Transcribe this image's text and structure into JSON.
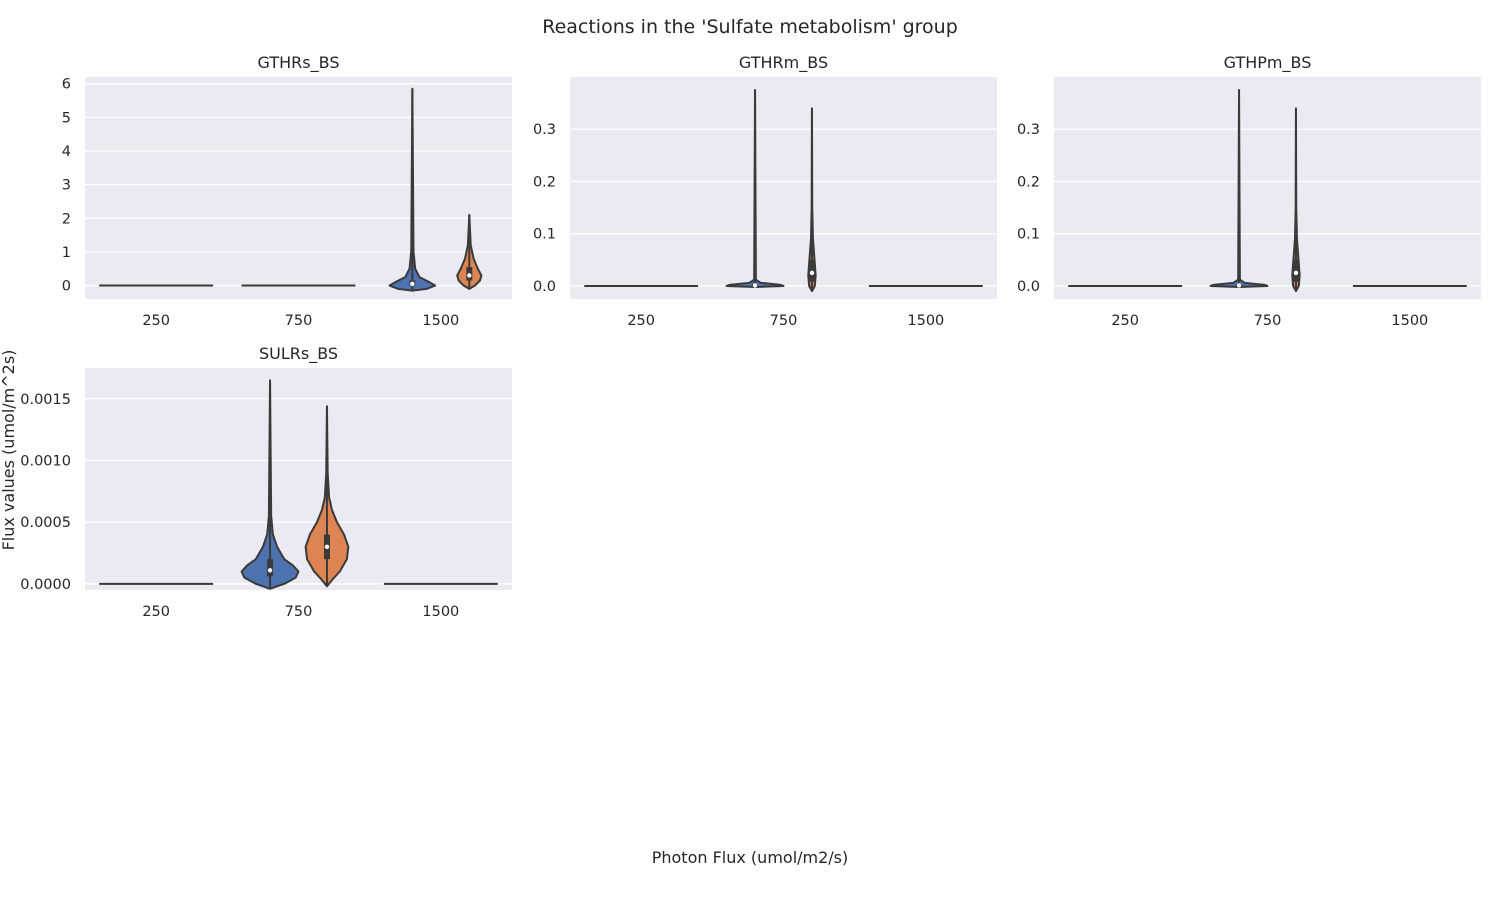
{
  "chart_data": {
    "type": "violin",
    "title": "Reactions in the 'Sulfate metabolism' group",
    "xlabel": "Photon Flux (umol/m2/s)",
    "ylabel": "Flux values (umol/m^2s)",
    "hue_colors": [
      "#4c72b0",
      "#dd8452"
    ],
    "panels": [
      {
        "title": "GTHRs_BS",
        "categories": [
          "250",
          "750",
          "1500"
        ],
        "ylim": [
          -0.4,
          6.2
        ],
        "yticks": [
          0,
          1,
          2,
          3,
          4,
          5,
          6
        ],
        "ytick_labels": [
          "0",
          "1",
          "2",
          "3",
          "4",
          "5",
          "6"
        ],
        "violins": [
          {
            "category": "250",
            "flat": true,
            "value": 0
          },
          {
            "category": "750",
            "flat": true,
            "value": 0
          },
          {
            "category": "1500",
            "hue": 0,
            "offset": -0.2,
            "min": -0.15,
            "max": 5.85,
            "q1": 0.0,
            "median": 0.05,
            "q3": 0.15,
            "shape": [
              [
                -0.15,
                0.0
              ],
              [
                -0.1,
                0.1
              ],
              [
                0.0,
                0.16
              ],
              [
                0.1,
                0.12
              ],
              [
                0.25,
                0.05
              ],
              [
                0.5,
                0.02
              ],
              [
                1.0,
                0.008
              ],
              [
                5.85,
                0.0
              ]
            ]
          },
          {
            "category": "1500",
            "hue": 1,
            "offset": 0.2,
            "min": -0.1,
            "max": 2.1,
            "q1": 0.15,
            "median": 0.3,
            "q3": 0.55,
            "shape": [
              [
                -0.1,
                0.0
              ],
              [
                0.0,
                0.04
              ],
              [
                0.15,
                0.075
              ],
              [
                0.3,
                0.085
              ],
              [
                0.5,
                0.06
              ],
              [
                0.8,
                0.03
              ],
              [
                1.2,
                0.01
              ],
              [
                2.1,
                0.0
              ]
            ]
          }
        ]
      },
      {
        "title": "GTHRm_BS",
        "categories": [
          "250",
          "750",
          "1500"
        ],
        "ylim": [
          -0.025,
          0.4
        ],
        "yticks": [
          0.0,
          0.1,
          0.2,
          0.3
        ],
        "ytick_labels": [
          "0.0",
          "0.1",
          "0.2",
          "0.3"
        ],
        "violins": [
          {
            "category": "250",
            "flat": true,
            "value": 0
          },
          {
            "category": "750",
            "hue": 0,
            "offset": -0.2,
            "min": -0.002,
            "max": 0.375,
            "q1": 0.0,
            "median": 0.001,
            "q3": 0.003,
            "shape": [
              [
                -0.002,
                0.0
              ],
              [
                0.0,
                0.2
              ],
              [
                0.002,
                0.18
              ],
              [
                0.006,
                0.04
              ],
              [
                0.012,
                0.006
              ],
              [
                0.375,
                0.0
              ]
            ]
          },
          {
            "category": "750",
            "hue": 1,
            "offset": 0.2,
            "min": -0.01,
            "max": 0.34,
            "q1": 0.008,
            "median": 0.025,
            "q3": 0.05,
            "shape": [
              [
                -0.01,
                0.0
              ],
              [
                0.0,
                0.02
              ],
              [
                0.02,
                0.026
              ],
              [
                0.05,
                0.018
              ],
              [
                0.09,
                0.007
              ],
              [
                0.15,
                0.002
              ],
              [
                0.34,
                0.0
              ]
            ]
          },
          {
            "category": "1500",
            "flat": true,
            "value": 0
          }
        ]
      },
      {
        "title": "GTHPm_BS",
        "categories": [
          "250",
          "750",
          "1500"
        ],
        "ylim": [
          -0.025,
          0.4
        ],
        "yticks": [
          0.0,
          0.1,
          0.2,
          0.3
        ],
        "ytick_labels": [
          "0.0",
          "0.1",
          "0.2",
          "0.3"
        ],
        "violins": [
          {
            "category": "250",
            "flat": true,
            "value": 0
          },
          {
            "category": "750",
            "hue": 0,
            "offset": -0.2,
            "min": -0.002,
            "max": 0.375,
            "q1": 0.0,
            "median": 0.001,
            "q3": 0.003,
            "shape": [
              [
                -0.002,
                0.0
              ],
              [
                0.0,
                0.2
              ],
              [
                0.002,
                0.18
              ],
              [
                0.006,
                0.04
              ],
              [
                0.012,
                0.006
              ],
              [
                0.375,
                0.0
              ]
            ]
          },
          {
            "category": "750",
            "hue": 1,
            "offset": 0.2,
            "min": -0.01,
            "max": 0.34,
            "q1": 0.008,
            "median": 0.025,
            "q3": 0.05,
            "shape": [
              [
                -0.01,
                0.0
              ],
              [
                0.0,
                0.02
              ],
              [
                0.02,
                0.026
              ],
              [
                0.05,
                0.018
              ],
              [
                0.09,
                0.007
              ],
              [
                0.15,
                0.002
              ],
              [
                0.34,
                0.0
              ]
            ]
          },
          {
            "category": "1500",
            "flat": true,
            "value": 0
          }
        ]
      },
      {
        "title": "SULRs_BS",
        "categories": [
          "250",
          "750",
          "1500"
        ],
        "ylim": [
          -5e-05,
          0.00175
        ],
        "yticks": [
          0.0,
          0.0005,
          0.001,
          0.0015
        ],
        "ytick_labels": [
          "0.0000",
          "0.0005",
          "0.0010",
          "0.0015"
        ],
        "violins": [
          {
            "category": "250",
            "flat": true,
            "value": 0
          },
          {
            "category": "750",
            "hue": 0,
            "offset": -0.2,
            "min": -4e-05,
            "max": 0.00165,
            "q1": 6e-05,
            "median": 0.00011,
            "q3": 0.0002,
            "shape": [
              [
                -4e-05,
                0.0
              ],
              [
                0.0,
                0.1
              ],
              [
                5e-05,
                0.18
              ],
              [
                0.0001,
                0.2
              ],
              [
                0.00015,
                0.16
              ],
              [
                0.0002,
                0.1
              ],
              [
                0.0003,
                0.05
              ],
              [
                0.0004,
                0.02
              ],
              [
                0.00055,
                0.008
              ],
              [
                0.00165,
                0.0
              ]
            ]
          },
          {
            "category": "750",
            "hue": 1,
            "offset": 0.2,
            "min": -2e-05,
            "max": 0.00144,
            "q1": 0.0002,
            "median": 0.0003,
            "q3": 0.0004,
            "shape": [
              [
                -2e-05,
                0.0
              ],
              [
                5e-05,
                0.05
              ],
              [
                0.0001,
                0.09
              ],
              [
                0.0002,
                0.14
              ],
              [
                0.0003,
                0.15
              ],
              [
                0.0004,
                0.12
              ],
              [
                0.0005,
                0.07
              ],
              [
                0.0006,
                0.035
              ],
              [
                0.0007,
                0.015
              ],
              [
                0.0009,
                0.005
              ],
              [
                0.00144,
                0.0
              ]
            ]
          },
          {
            "category": "1500",
            "flat": true,
            "value": 0
          }
        ]
      }
    ]
  }
}
